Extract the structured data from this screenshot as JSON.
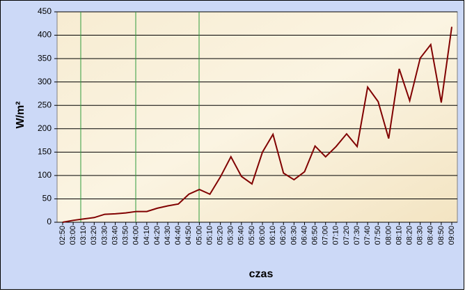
{
  "chart_data": {
    "type": "line",
    "x_label": "czas",
    "y_label": "W/m²",
    "categories": [
      "02:50",
      "03:00",
      "03:10",
      "03:20",
      "03:30",
      "03:40",
      "03:50",
      "04:00",
      "04:10",
      "04:20",
      "04:30",
      "04:40",
      "04:50",
      "05:00",
      "05:10",
      "05:20",
      "05:30",
      "05:40",
      "05:50",
      "06:00",
      "06:10",
      "06:20",
      "06:30",
      "06:40",
      "06:50",
      "07:00",
      "07:10",
      "07:20",
      "07:30",
      "07:40",
      "07:50",
      "08:00",
      "08:10",
      "08:20",
      "08:30",
      "08:40",
      "08:50",
      "09:00"
    ],
    "values": [
      0,
      4,
      7,
      10,
      17,
      18,
      20,
      23,
      23,
      30,
      35,
      39,
      60,
      70,
      60,
      97,
      140,
      98,
      82,
      150,
      188,
      105,
      91,
      108,
      163,
      140,
      162,
      189,
      162,
      289,
      258,
      179,
      328,
      260,
      351,
      380,
      256,
      418
    ],
    "color": "#800000",
    "ylim": [
      0,
      450
    ],
    "yticks": [
      0,
      50,
      100,
      150,
      200,
      250,
      300,
      350,
      400,
      450
    ],
    "grid": true
  }
}
